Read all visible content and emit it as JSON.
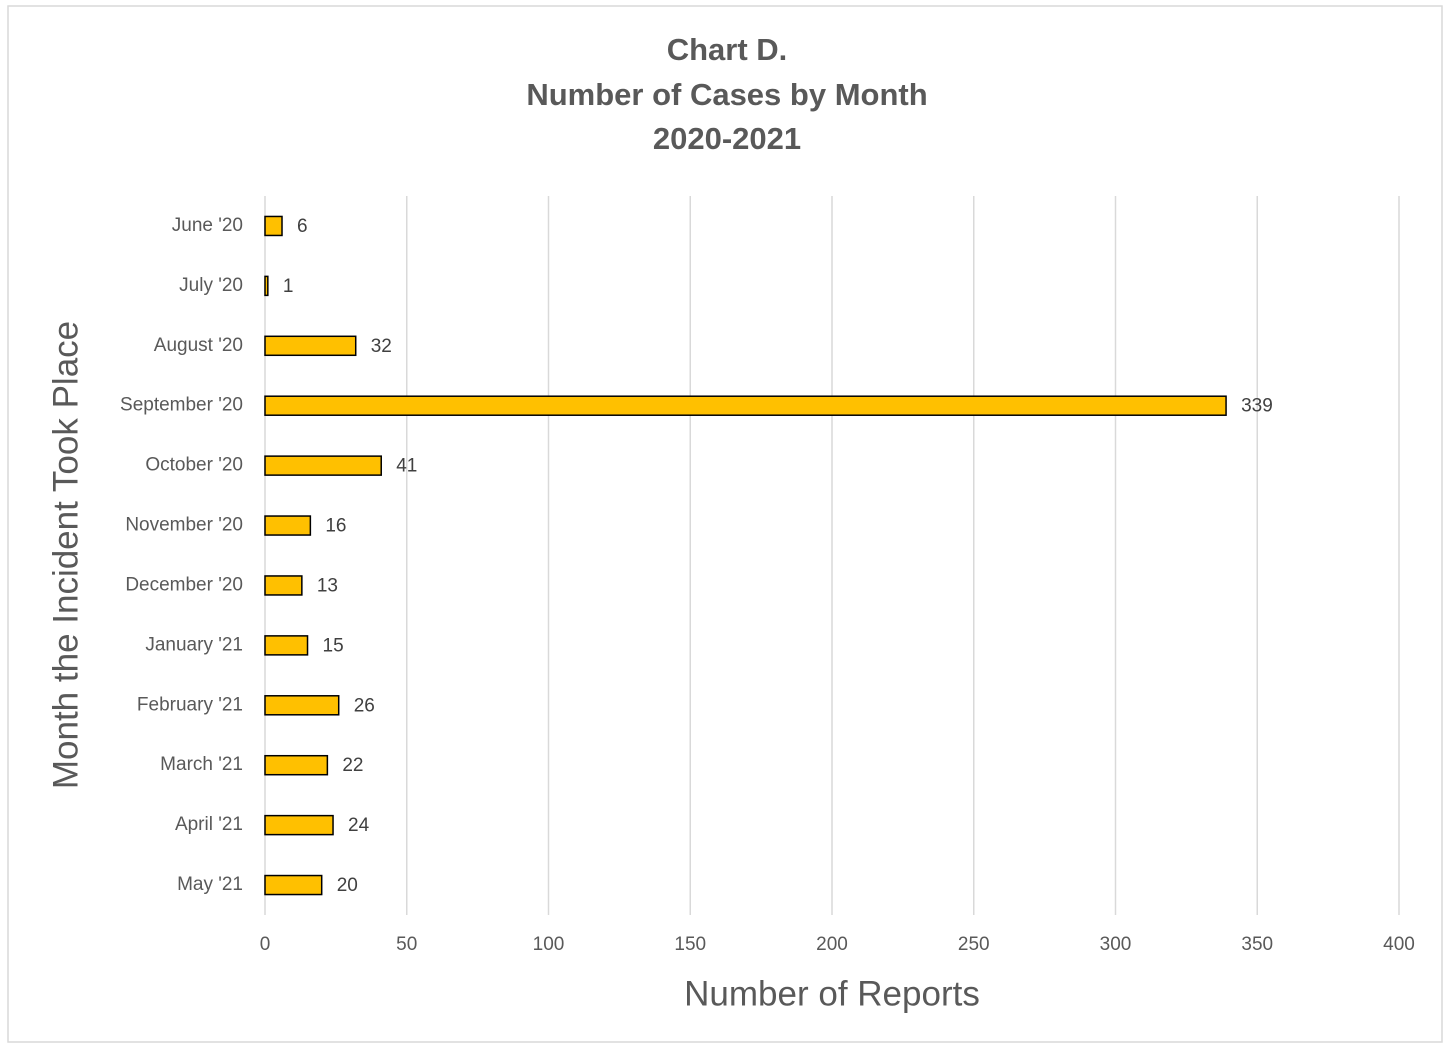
{
  "chart_data": {
    "type": "hbar",
    "title": [
      "Chart D.",
      "Number of Cases by Month",
      "2020-2021"
    ],
    "x_label": "Number of Reports",
    "y_label": "Month the Incident Took Place",
    "categories": [
      "June '20",
      "July '20",
      "August '20",
      "September '20",
      "October '20",
      "November '20",
      "December '20",
      "January '21",
      "February '21",
      "March '21",
      "April '21",
      "May '21"
    ],
    "values": [
      6,
      1,
      32,
      339,
      41,
      16,
      13,
      15,
      26,
      22,
      24,
      20
    ],
    "color": "#FFC000",
    "xlim": [
      0,
      400
    ],
    "xticks": [
      0,
      50,
      100,
      150,
      200,
      250,
      300,
      350,
      400
    ],
    "grid": true
  }
}
